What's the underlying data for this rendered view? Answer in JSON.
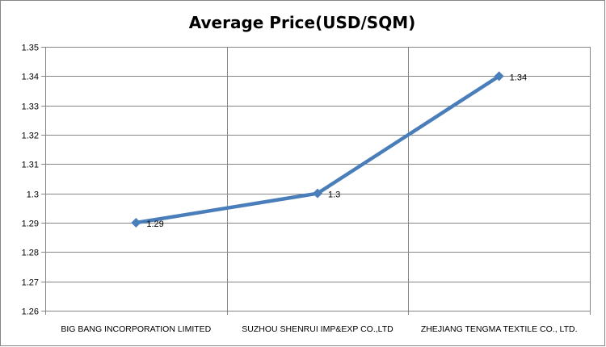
{
  "chart_data": {
    "type": "line",
    "title": "Average Price(USD/SQM)",
    "xlabel": "",
    "ylabel": "",
    "categories": [
      "BIG BANG INCORPORATION LIMITED",
      "SUZHOU SHENRUI IMP&EXP CO.,LTD",
      "ZHEJIANG TENGMA TEXTILE CO., LTD."
    ],
    "series": [
      {
        "values": [
          1.29,
          1.3,
          1.34
        ],
        "data_labels": [
          "1.29",
          "1.3",
          "1.34"
        ],
        "color": "#4A7EBB",
        "marker": "diamond"
      }
    ],
    "ylim": [
      1.26,
      1.35
    ],
    "yticks": [
      "1.26",
      "1.27",
      "1.28",
      "1.29",
      "1.3",
      "1.31",
      "1.32",
      "1.33",
      "1.34",
      "1.35"
    ],
    "grid": true,
    "legend": "none",
    "colors": {
      "gridline": "#868686",
      "frame": "#868686",
      "line": "#4A7EBB"
    }
  }
}
